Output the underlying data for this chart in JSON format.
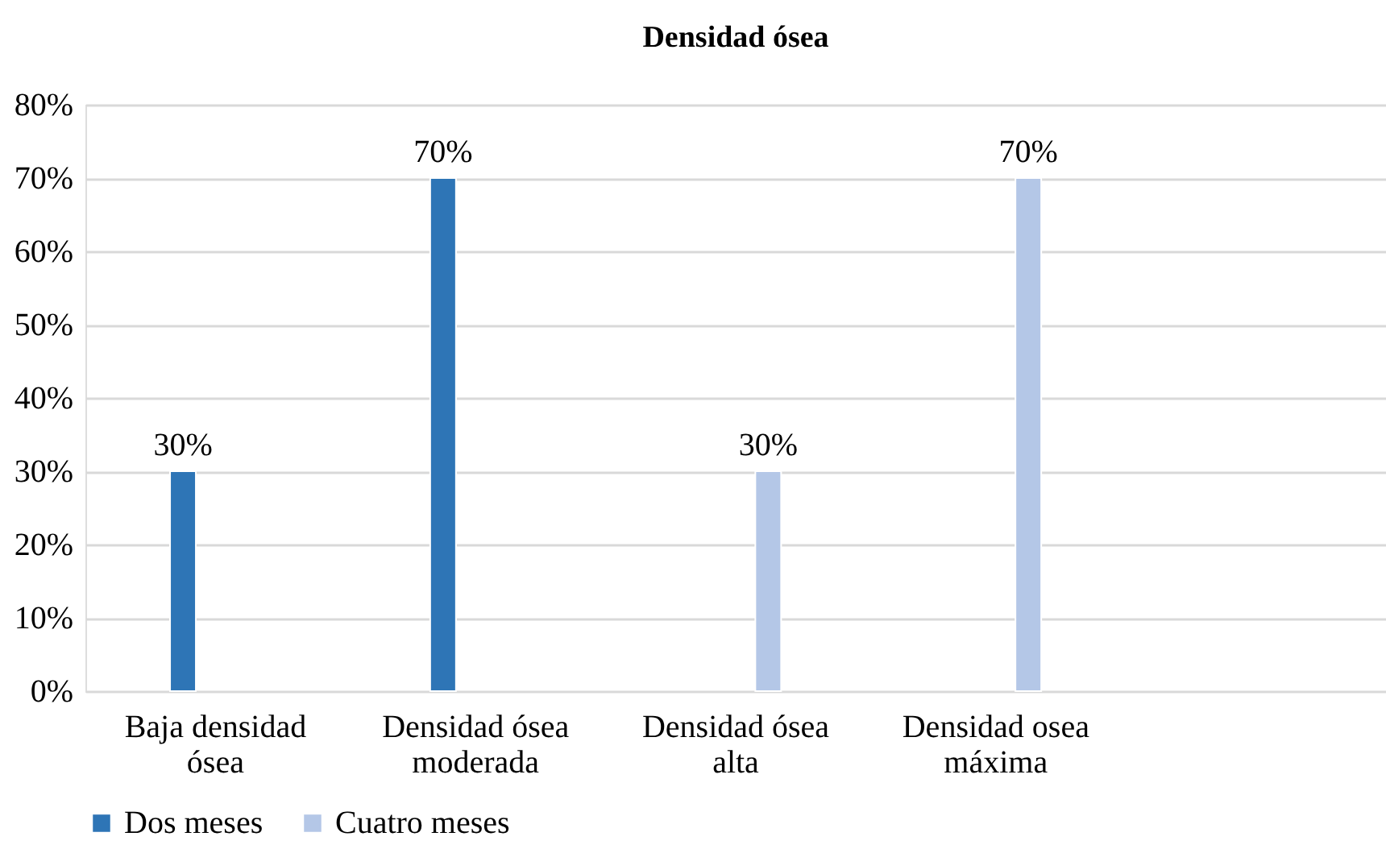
{
  "chart_data": {
    "type": "bar",
    "title": "Densidad ósea",
    "categories": [
      "Baja densidad ósea",
      "Densidad ósea moderada",
      "Densidad ósea alta",
      "Densidad osea máxima",
      null
    ],
    "series": [
      {
        "name": "Dos meses",
        "color": "#2e75b6",
        "values": [
          30,
          70,
          null,
          null,
          null
        ],
        "value_labels": [
          "30%",
          "70%",
          null,
          null,
          null
        ]
      },
      {
        "name": "Cuatro meses",
        "color": "#b4c7e7",
        "values": [
          null,
          null,
          30,
          70,
          null
        ],
        "value_labels": [
          null,
          null,
          "30%",
          "70%",
          null
        ]
      }
    ],
    "ylim": [
      0,
      80
    ],
    "yticks": [
      {
        "value": 0,
        "label": "0%"
      },
      {
        "value": 10,
        "label": "10%"
      },
      {
        "value": 20,
        "label": "20%"
      },
      {
        "value": 30,
        "label": "30%"
      },
      {
        "value": 40,
        "label": "40%"
      },
      {
        "value": 50,
        "label": "50%"
      },
      {
        "value": 60,
        "label": "60%"
      },
      {
        "value": 70,
        "label": "70%"
      },
      {
        "value": 80,
        "label": "80%"
      }
    ],
    "grid": "y",
    "legend": "bottom"
  }
}
